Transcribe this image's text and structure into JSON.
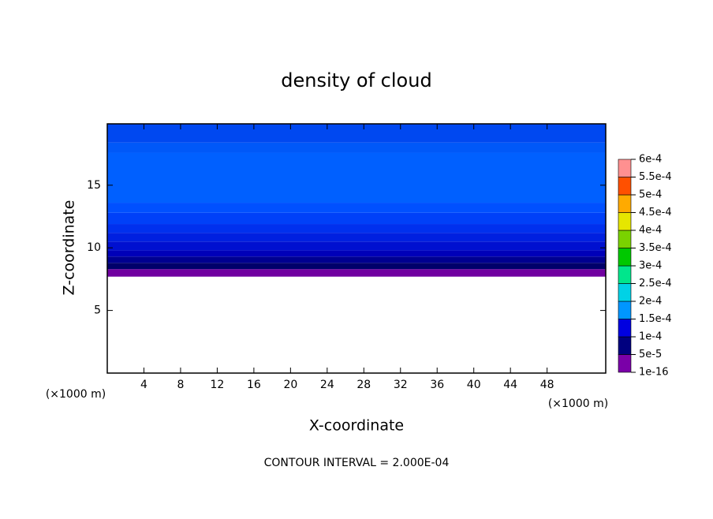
{
  "chart_data": {
    "type": "contour",
    "title": "density of cloud",
    "x_label": "X-coordinate",
    "y_label": "Z-coordinate",
    "x_unit_left": "(×1000 m)",
    "x_unit_right": "(×1000 m)",
    "footer": "CONTOUR INTERVAL = 2.000E-04",
    "xlim": [
      0,
      54.4
    ],
    "xticks": [
      4,
      8,
      12,
      16,
      20,
      24,
      28,
      32,
      36,
      40,
      44,
      48
    ],
    "ylim": [
      0,
      19.9
    ],
    "yticks": [
      5,
      10,
      15
    ],
    "profile": {
      "z": [
        7.7,
        8.3,
        8.8,
        9.3,
        9.8,
        10.5,
        11.2,
        11.9,
        12.8,
        13.6,
        17.6,
        18.4,
        19.9
      ],
      "colors": [
        "#7000a0",
        "#00006a",
        "#000090",
        "#0000b8",
        "#0010d0",
        "#0020e0",
        "#0030ee",
        "#0040f8",
        "#0050ff",
        "#0060ff",
        "#0058f8",
        "#0048f0"
      ]
    },
    "colorbar": {
      "ticks": [
        {
          "value": 1e-16,
          "label": "1e-16"
        },
        {
          "value": 5e-05,
          "label": "5e-5"
        },
        {
          "value": 0.0001,
          "label": "1e-4"
        },
        {
          "value": 0.00015,
          "label": "1.5e-4"
        },
        {
          "value": 0.0002,
          "label": "2e-4"
        },
        {
          "value": 0.00025,
          "label": "2.5e-4"
        },
        {
          "value": 0.0003,
          "label": "3e-4"
        },
        {
          "value": 0.00035,
          "label": "3.5e-4"
        },
        {
          "value": 0.0004,
          "label": "4e-4"
        },
        {
          "value": 0.00045,
          "label": "4.5e-4"
        },
        {
          "value": 0.0005,
          "label": "5e-4"
        },
        {
          "value": 0.00055,
          "label": "5.5e-4"
        },
        {
          "value": 0.0006,
          "label": "6e-4"
        }
      ],
      "colors": [
        "#7a00a8",
        "#00007f",
        "#0000e0",
        "#0096ff",
        "#00d2e6",
        "#00e68c",
        "#00c800",
        "#7ad200",
        "#e6e600",
        "#ffaa00",
        "#ff5000",
        "#ff9090"
      ]
    }
  }
}
